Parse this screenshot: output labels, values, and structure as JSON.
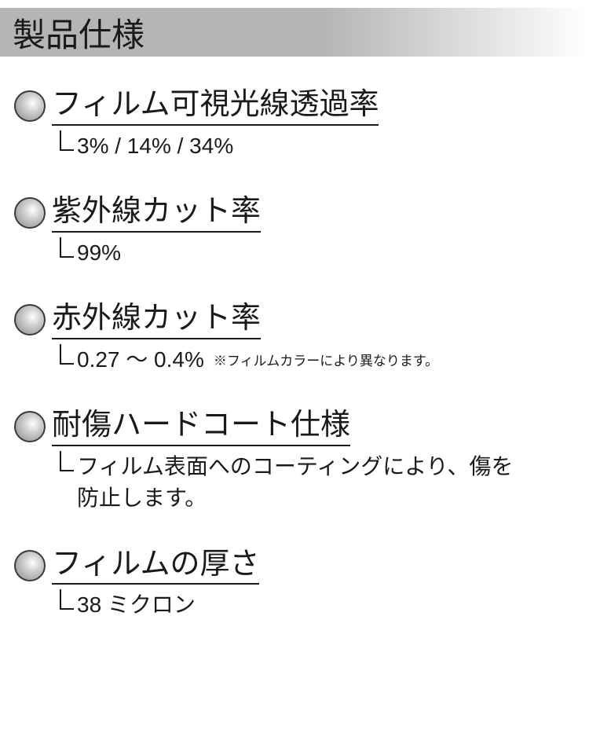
{
  "header": {
    "title": "製品仕様",
    "gradient_from": "#b5b5b5",
    "gradient_to": "#ffffff",
    "title_fontsize": 42,
    "title_color": "#1a1a1a"
  },
  "typography": {
    "label_fontsize": 38,
    "value_fontsize": 28,
    "note_fontsize": 17,
    "text_color": "#1a1a1a",
    "underline_color": "#1a1a1a"
  },
  "bullet": {
    "diameter": 40,
    "border_color": "#3a3a3a",
    "gradient_light": "#ffffff",
    "gradient_mid": "#d0d0d0",
    "gradient_dark": "#8a8a8a"
  },
  "specs": [
    {
      "label": "フィルム可視光線透過率",
      "value": "3% / 14% / 34%",
      "note": ""
    },
    {
      "label": "紫外線カット率",
      "value": "99%",
      "note": ""
    },
    {
      "label": "赤外線カット率",
      "value": "0.27 ～ 0.4%",
      "note": "※フィルムカラーにより異なります。"
    },
    {
      "label": "耐傷ハードコート仕様",
      "value": "フィルム表面へのコーティングにより、傷を防止します。",
      "note": ""
    },
    {
      "label": "フィルムの厚さ",
      "value": "38 ミクロン",
      "note": ""
    }
  ]
}
